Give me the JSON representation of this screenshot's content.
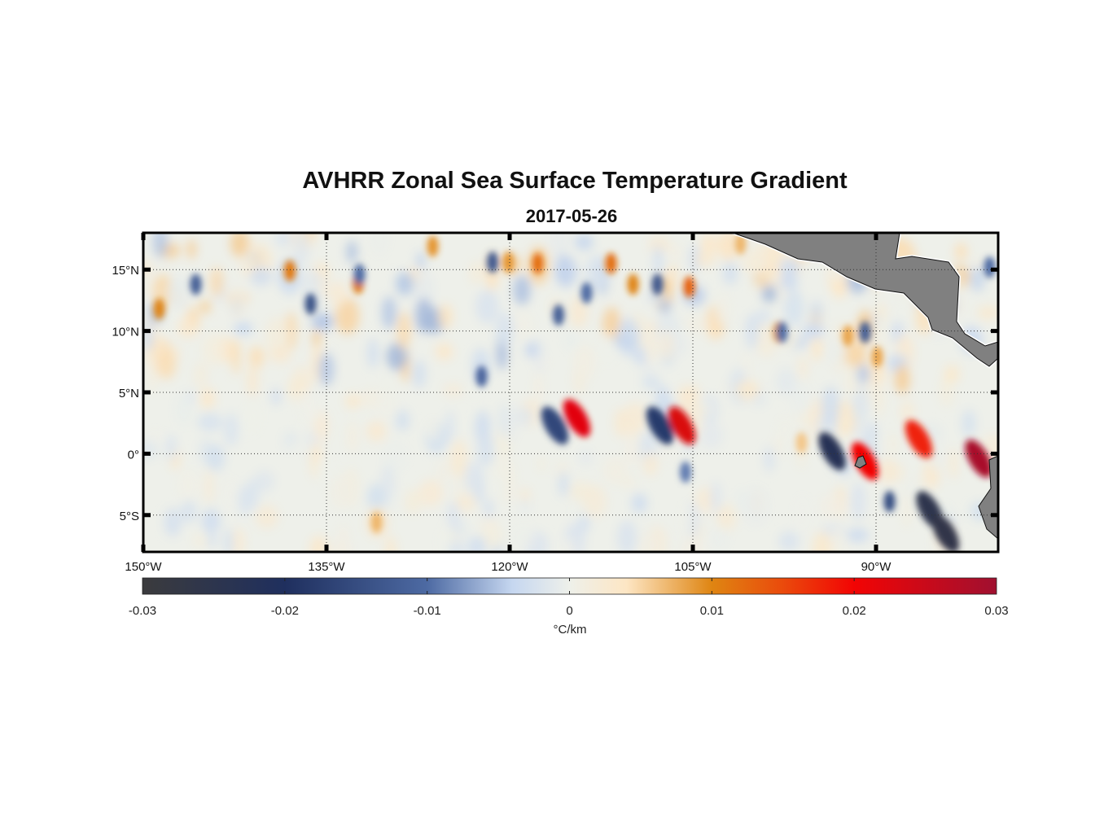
{
  "title": "AVHRR Zonal Sea Surface Temperature Gradient",
  "subtitle": "2017-05-26",
  "chart_data": {
    "type": "heatmap",
    "title": "AVHRR Zonal Sea Surface Temperature Gradient",
    "subtitle": "2017-05-26",
    "xlim": [
      -150,
      -80
    ],
    "ylim": [
      -8,
      18
    ],
    "grid": true,
    "x_ticks": [
      {
        "v": -150,
        "label": "150°W"
      },
      {
        "v": -135,
        "label": "135°W"
      },
      {
        "v": -120,
        "label": "120°W"
      },
      {
        "v": -105,
        "label": "105°W"
      },
      {
        "v": -90,
        "label": "90°W"
      }
    ],
    "y_ticks": [
      {
        "v": 15,
        "label": "15°N"
      },
      {
        "v": 10,
        "label": "10°N"
      },
      {
        "v": 5,
        "label": "5°N"
      },
      {
        "v": 0,
        "label": "0°"
      },
      {
        "v": -5,
        "label": "5°S"
      }
    ],
    "colorbar": {
      "label": "°C/km",
      "range": [
        -0.03,
        0.03
      ],
      "ticks": [
        "-0.03",
        "-0.02",
        "-0.01",
        "0",
        "0.01",
        "0.02",
        "0.03"
      ],
      "stops": [
        {
          "v": -0.03,
          "c": "#3b3b3d"
        },
        {
          "v": -0.02,
          "c": "#1f2f5e"
        },
        {
          "v": -0.01,
          "c": "#4d6aa3"
        },
        {
          "v": -0.004,
          "c": "#c6d7f0"
        },
        {
          "v": 0,
          "c": "#eef0ea"
        },
        {
          "v": 0.004,
          "c": "#fde6c4"
        },
        {
          "v": 0.01,
          "c": "#df8512"
        },
        {
          "v": 0.015,
          "c": "#ea4a0c"
        },
        {
          "v": 0.02,
          "c": "#f20404"
        },
        {
          "v": 0.03,
          "c": "#a01030"
        }
      ]
    },
    "features": [
      {
        "lon": -114.5,
        "lat": 2.9,
        "v": 0.022
      },
      {
        "lon": -105.9,
        "lat": 2.3,
        "v": 0.023
      },
      {
        "lon": -81.6,
        "lat": -0.4,
        "v": 0.029
      },
      {
        "lon": -86.5,
        "lat": 1.2,
        "v": 0.018
      },
      {
        "lon": -90.9,
        "lat": -0.6,
        "v": 0.02
      },
      {
        "lon": -117.7,
        "lat": 15.5,
        "v": 0.012
      },
      {
        "lon": -111.7,
        "lat": 15.5,
        "v": 0.012
      },
      {
        "lon": -105.3,
        "lat": 13.6,
        "v": 0.013
      },
      {
        "lon": -109.9,
        "lat": 13.8,
        "v": 0.01
      },
      {
        "lon": -138.0,
        "lat": 14.9,
        "v": 0.011
      },
      {
        "lon": -132.4,
        "lat": 13.9,
        "v": 0.011
      },
      {
        "lon": -148.7,
        "lat": 11.8,
        "v": 0.01
      },
      {
        "lon": -120.1,
        "lat": 15.6,
        "v": 0.009
      },
      {
        "lon": -126.3,
        "lat": 16.9,
        "v": 0.009
      },
      {
        "lon": -98.0,
        "lat": 9.9,
        "v": 0.008
      },
      {
        "lon": -92.3,
        "lat": 9.6,
        "v": 0.008
      },
      {
        "lon": -89.9,
        "lat": 7.9,
        "v": 0.008
      },
      {
        "lon": -130.9,
        "lat": -5.6,
        "v": 0.007
      },
      {
        "lon": -101.1,
        "lat": 17.1,
        "v": 0.007
      },
      {
        "lon": -96.1,
        "lat": 0.9,
        "v": 0.006
      },
      {
        "lon": -93.6,
        "lat": 0.2,
        "v": -0.023
      },
      {
        "lon": -85.6,
        "lat": -4.6,
        "v": -0.025
      },
      {
        "lon": -84.3,
        "lat": -6.5,
        "v": -0.026
      },
      {
        "lon": -107.7,
        "lat": 2.3,
        "v": -0.018
      },
      {
        "lon": -116.3,
        "lat": 2.3,
        "v": -0.016
      },
      {
        "lon": -136.3,
        "lat": 12.2,
        "v": -0.014
      },
      {
        "lon": -145.7,
        "lat": 13.8,
        "v": -0.012
      },
      {
        "lon": -121.4,
        "lat": 15.6,
        "v": -0.013
      },
      {
        "lon": -116.0,
        "lat": 11.3,
        "v": -0.012
      },
      {
        "lon": -107.9,
        "lat": 13.8,
        "v": -0.013
      },
      {
        "lon": -113.7,
        "lat": 13.1,
        "v": -0.01
      },
      {
        "lon": -122.3,
        "lat": 6.3,
        "v": -0.011
      },
      {
        "lon": -90.9,
        "lat": 9.9,
        "v": -0.012
      },
      {
        "lon": -88.9,
        "lat": -3.9,
        "v": -0.015
      },
      {
        "lon": -97.7,
        "lat": 9.9,
        "v": -0.01
      },
      {
        "lon": -132.3,
        "lat": 14.6,
        "v": -0.01
      },
      {
        "lon": -105.6,
        "lat": -1.5,
        "v": -0.009
      },
      {
        "lon": -80.7,
        "lat": 15.2,
        "v": -0.01
      }
    ]
  }
}
